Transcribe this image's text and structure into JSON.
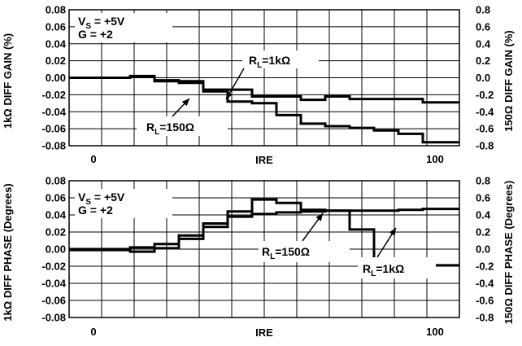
{
  "chart_data": [
    {
      "type": "line",
      "step": true,
      "grid": true,
      "x": [
        0,
        7.14,
        14.29,
        21.43,
        28.57,
        35.71,
        42.86,
        50.0,
        57.14,
        64.29,
        71.43,
        78.57,
        85.71,
        92.86,
        100
      ],
      "xlim": [
        -7.14,
        107.14
      ],
      "xticks": [
        "0",
        "100"
      ],
      "xlabel": "IRE",
      "ylabel_left": "1kΩ DIFF GAIN (%)",
      "ylim_left": [
        -0.08,
        0.08
      ],
      "yticks_left": [
        "0.08",
        "0.06",
        "0.04",
        "0.02",
        "0.00",
        "-0.02",
        "-0.04",
        "-0.06",
        "-0.08"
      ],
      "ylabel_right": "150Ω DIFF GAIN (%)",
      "ylim_right": [
        -0.8,
        0.8
      ],
      "yticks_right": [
        "0.8",
        "0.6",
        "0.4",
        "0.2",
        "0.0",
        "-0.2",
        "-0.4",
        "-0.6",
        "-0.8"
      ],
      "annotation": {
        "line1": "V",
        "line1_sub": "S",
        "line1_rest": " = +5V",
        "line2": "G = +2"
      },
      "series": [
        {
          "name": "R_L=1kΩ",
          "label_main": "R",
          "label_sub": "L",
          "label_rest": "=1kΩ",
          "axis": "left",
          "values": [
            0.0,
            0.0,
            0.002,
            -0.004,
            -0.004,
            -0.014,
            -0.014,
            -0.022,
            -0.022,
            -0.026,
            -0.022,
            -0.025,
            -0.025,
            -0.025,
            -0.029
          ]
        },
        {
          "name": "R_L=150Ω",
          "label_main": "R",
          "label_sub": "L",
          "label_rest": "=150Ω",
          "axis": "right",
          "values": [
            0.0,
            0.0,
            0.01,
            -0.03,
            -0.06,
            -0.16,
            -0.28,
            -0.3,
            -0.44,
            -0.54,
            -0.57,
            -0.59,
            -0.62,
            -0.66,
            -0.76
          ]
        }
      ]
    },
    {
      "type": "line",
      "step": true,
      "grid": true,
      "x": [
        0,
        7.14,
        14.29,
        21.43,
        28.57,
        35.71,
        42.86,
        50.0,
        57.14,
        64.29,
        71.43,
        78.57,
        85.71,
        92.86,
        100
      ],
      "xlim": [
        -7.14,
        107.14
      ],
      "xticks": [
        "0",
        "100"
      ],
      "xlabel": "IRE",
      "ylabel_left": "1kΩ DIFF PHASE (Degrees)",
      "ylim_left": [
        -0.08,
        0.08
      ],
      "yticks_left": [
        "0.08",
        "0.06",
        "0.04",
        "0.02",
        "0.00",
        "-0.02",
        "-0.04",
        "-0.06",
        "-0.08"
      ],
      "ylabel_right": "150Ω DIFF PHASE (Degrees)",
      "ylim_right": [
        -0.8,
        0.8
      ],
      "yticks_right": [
        "0.8",
        "0.6",
        "0.4",
        "0.2",
        "0.0",
        "-0.2",
        "-0.4",
        "-0.6",
        "-0.8"
      ],
      "annotation": {
        "line1": "V",
        "line1_sub": "S",
        "line1_rest": " = +5V",
        "line2": "G = +2"
      },
      "series": [
        {
          "name": "R_L=1kΩ",
          "label_main": "R",
          "label_sub": "L",
          "label_rest": "=1kΩ",
          "axis": "left",
          "values": [
            -0.001,
            -0.001,
            -0.003,
            0.001,
            0.012,
            0.026,
            0.038,
            0.041,
            0.043,
            0.044,
            0.045,
            0.045,
            0.045,
            0.046,
            0.047
          ]
        },
        {
          "name": "R_L=150Ω",
          "label_main": "R",
          "label_sub": "L",
          "label_rest": "=150Ω",
          "axis": "right",
          "values": [
            0.0,
            0.0,
            0.02,
            0.06,
            0.16,
            0.3,
            0.44,
            0.58,
            0.54,
            0.46,
            0.45,
            0.23,
            -0.17,
            -0.19,
            -0.19
          ]
        }
      ]
    }
  ]
}
